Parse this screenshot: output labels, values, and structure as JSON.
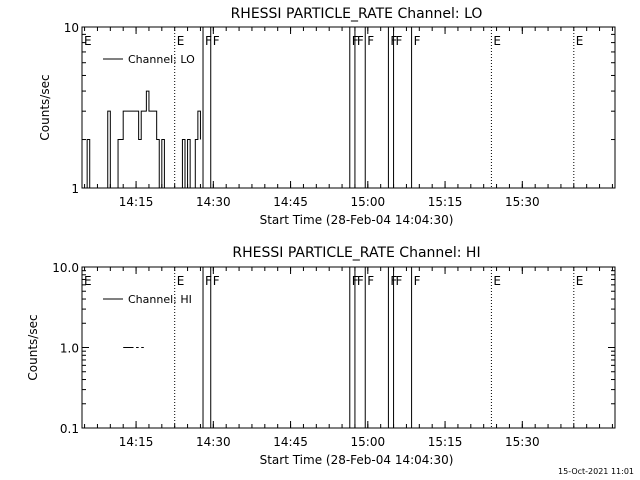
{
  "footer_stamp": "15-Oct-2021 11:01",
  "chart_data": [
    {
      "type": "line",
      "title": "RHESSI PARTICLE_RATE Channel: LO",
      "xlabel": "Start Time (28-Feb-04 14:04:30)",
      "ylabel": "Counts/sec",
      "y_scale": "log",
      "ylim": [
        1,
        10
      ],
      "y_ticks": [
        {
          "value": 1,
          "label": "1"
        },
        {
          "value": 10,
          "label": "10"
        }
      ],
      "x_start": "14:04:30",
      "xlim": [
        "14:04:30",
        "15:48:00"
      ],
      "x_ticks": [
        "14:15",
        "14:30",
        "14:45",
        "15:00",
        "15:15",
        "15:30"
      ],
      "legend": {
        "placement": "top-left",
        "entries": [
          {
            "name": "Channel: LO"
          }
        ]
      },
      "markers": [
        {
          "label": "E",
          "time": "14:04:30",
          "style": "dotted"
        },
        {
          "label": "E",
          "time": "14:22:30",
          "style": "dotted"
        },
        {
          "label": "F",
          "time": "14:28:00",
          "style": "solid"
        },
        {
          "label": "F",
          "time": "14:29:30",
          "style": "solid"
        },
        {
          "label": "F",
          "time": "14:56:30",
          "style": "solid"
        },
        {
          "label": "F",
          "time": "14:57:30",
          "style": "solid"
        },
        {
          "label": "F",
          "time": "14:59:30",
          "style": "solid"
        },
        {
          "label": "F",
          "time": "15:04:00",
          "style": "solid"
        },
        {
          "label": "F",
          "time": "15:05:00",
          "style": "solid"
        },
        {
          "label": "F",
          "time": "15:08:30",
          "style": "solid"
        },
        {
          "label": "E",
          "time": "15:24:00",
          "style": "dotted"
        },
        {
          "label": "E",
          "time": "15:40:00",
          "style": "dotted"
        }
      ],
      "series": [
        {
          "name": "Channel: LO",
          "x": [
            "14:04:30",
            "14:05:00",
            "14:05:30",
            "14:06:00",
            "14:06:30",
            "14:07:00",
            "14:07:30",
            "14:08:00",
            "14:08:30",
            "14:09:00",
            "14:09:30",
            "14:10:00",
            "14:10:30",
            "14:11:00",
            "14:11:30",
            "14:12:00",
            "14:12:30",
            "14:13:00",
            "14:13:30",
            "14:14:00",
            "14:14:30",
            "14:15:00",
            "14:15:30",
            "14:16:00",
            "14:16:30",
            "14:17:00",
            "14:17:30",
            "14:18:00",
            "14:18:30",
            "14:19:00",
            "14:19:30",
            "14:20:00",
            "14:20:30",
            "14:21:00",
            "14:21:30",
            "14:22:00",
            "14:22:30",
            "14:23:00",
            "14:23:30",
            "14:24:00",
            "14:24:30",
            "14:25:00",
            "14:25:30",
            "14:26:00",
            "14:26:30",
            "14:27:00",
            "14:27:30"
          ],
          "y": [
            1,
            1,
            2,
            1,
            1,
            1,
            1,
            1,
            1,
            1,
            3,
            1,
            1,
            1,
            2,
            2,
            3,
            3,
            3,
            3,
            3,
            3,
            2,
            3,
            3,
            4,
            3,
            3,
            3,
            2,
            1,
            2,
            1,
            1,
            1,
            1,
            1,
            1,
            1,
            2,
            1,
            2,
            1,
            1,
            2,
            3,
            2
          ]
        }
      ]
    },
    {
      "type": "line",
      "title": "RHESSI PARTICLE_RATE Channel: HI",
      "xlabel": "Start Time (28-Feb-04 14:04:30)",
      "ylabel": "Counts/sec",
      "y_scale": "log",
      "ylim": [
        0.1,
        10
      ],
      "y_ticks": [
        {
          "value": 0.1,
          "label": "0.1"
        },
        {
          "value": 1,
          "label": "1.0"
        },
        {
          "value": 10,
          "label": "10.0"
        }
      ],
      "x_start": "14:04:30",
      "xlim": [
        "14:04:30",
        "15:48:00"
      ],
      "x_ticks": [
        "14:15",
        "14:30",
        "14:45",
        "15:00",
        "15:15",
        "15:30"
      ],
      "legend": {
        "placement": "top-left",
        "entries": [
          {
            "name": "Channel: HI"
          }
        ]
      },
      "markers": [
        {
          "label": "E",
          "time": "14:04:30",
          "style": "dotted"
        },
        {
          "label": "E",
          "time": "14:22:30",
          "style": "dotted"
        },
        {
          "label": "F",
          "time": "14:28:00",
          "style": "solid"
        },
        {
          "label": "F",
          "time": "14:29:30",
          "style": "solid"
        },
        {
          "label": "F",
          "time": "14:56:30",
          "style": "solid"
        },
        {
          "label": "F",
          "time": "14:57:30",
          "style": "solid"
        },
        {
          "label": "F",
          "time": "14:59:30",
          "style": "solid"
        },
        {
          "label": "F",
          "time": "15:04:00",
          "style": "solid"
        },
        {
          "label": "F",
          "time": "15:05:00",
          "style": "solid"
        },
        {
          "label": "F",
          "time": "15:08:30",
          "style": "solid"
        },
        {
          "label": "E",
          "time": "15:24:00",
          "style": "dotted"
        },
        {
          "label": "E",
          "time": "15:40:00",
          "style": "dotted"
        }
      ],
      "series": [
        {
          "name": "Channel: HI",
          "segments": [
            {
              "x": [
                "14:12:30",
                "14:14:30"
              ],
              "y": [
                1,
                1
              ]
            },
            {
              "x": [
                "14:15:00",
                "14:15:30"
              ],
              "y": [
                1,
                1
              ]
            },
            {
              "x": [
                "14:16:00",
                "14:16:30"
              ],
              "y": [
                1,
                1
              ]
            }
          ]
        }
      ]
    }
  ]
}
